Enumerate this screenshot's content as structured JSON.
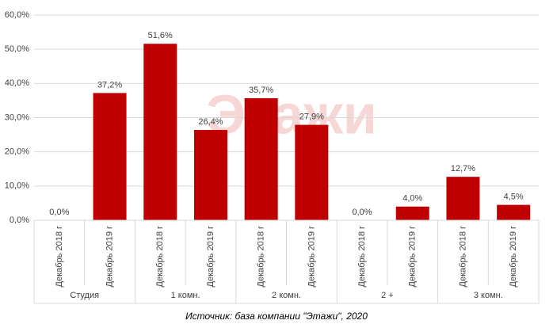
{
  "chart_data": {
    "type": "bar",
    "color": "#c00000",
    "grid": true,
    "watermark": "Этажи",
    "caption": "Источник: база компании \"Этажи\", 2020",
    "groups": [
      {
        "label": "Студия",
        "categories": [
          "Декабрь 2018 г",
          "Декабрь 2019 г"
        ],
        "values": [
          0,
          37.2
        ],
        "value_labels": [
          "0,0%",
          "37,2%"
        ]
      },
      {
        "label": "1 комн.",
        "categories": [
          "Декабрь 2018 г",
          "Декабрь 2019 г"
        ],
        "values": [
          51.6,
          26.4
        ],
        "value_labels": [
          "51,6%",
          "26,4%"
        ]
      },
      {
        "label": "2 комн.",
        "categories": [
          "Декабрь 2018 г",
          "Декабрь 2019 г"
        ],
        "values": [
          35.7,
          27.9
        ],
        "value_labels": [
          "35,7%",
          "27,9%"
        ]
      },
      {
        "label": "2 +",
        "categories": [
          "Декабрь 2018 г",
          "Декабрь 2019 г"
        ],
        "values": [
          0,
          4.0
        ],
        "value_labels": [
          "0,0%",
          "4,0%"
        ]
      },
      {
        "label": "3 комн.",
        "categories": [
          "Декабрь 2018 г",
          "Декабрь 2019 г"
        ],
        "values": [
          12.7,
          4.5
        ],
        "value_labels": [
          "12,7%",
          "4,5%"
        ]
      }
    ],
    "ylim": [
      0,
      60
    ],
    "yticks": [
      {
        "value": 0,
        "label": "0,0%"
      },
      {
        "value": 10,
        "label": "10,0%"
      },
      {
        "value": 20,
        "label": "20,0%"
      },
      {
        "value": 30,
        "label": "30,0%"
      },
      {
        "value": 40,
        "label": "40,0%"
      },
      {
        "value": 50,
        "label": "50,0%"
      },
      {
        "value": 60,
        "label": "60,0%"
      }
    ]
  }
}
